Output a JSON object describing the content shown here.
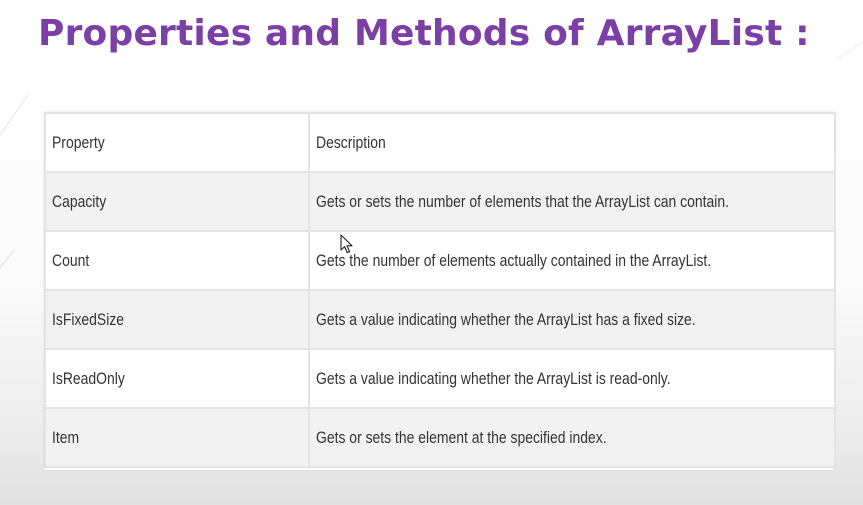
{
  "title": "Properties and Methods of ArrayList :",
  "table": {
    "headers": [
      "Property",
      "Description"
    ],
    "rows": [
      [
        "Capacity",
        "Gets or sets the number of elements that the ArrayList can contain."
      ],
      [
        "Count",
        "Gets the number of elements actually contained in the ArrayList."
      ],
      [
        "IsFixedSize",
        "Gets a value indicating whether the ArrayList has a fixed size."
      ],
      [
        "IsReadOnly",
        "Gets a value indicating whether the ArrayList is read-only."
      ],
      [
        "Item",
        "Gets or sets the element at the specified index."
      ]
    ]
  },
  "colors": {
    "title": "#7b3fa6",
    "text": "#333333",
    "row_alt": "#f2f2f2",
    "border": "#e3e3e3"
  },
  "icons": [
    "mouse-cursor-icon"
  ]
}
